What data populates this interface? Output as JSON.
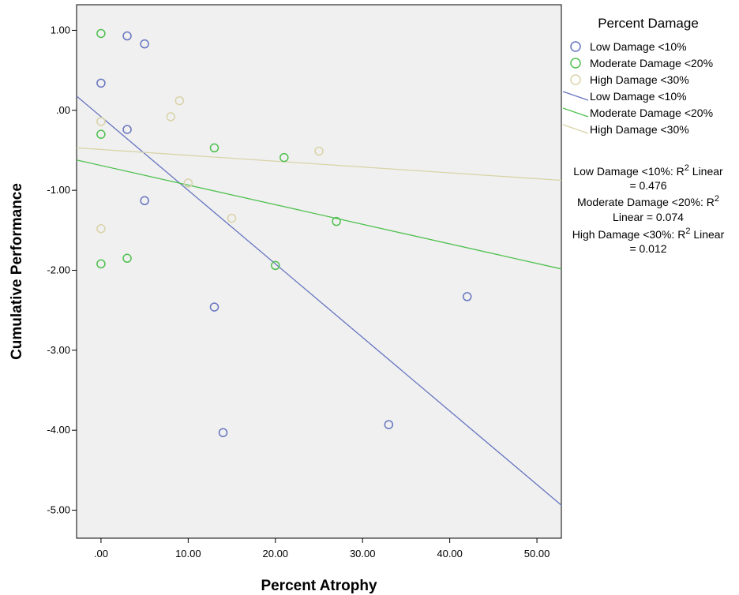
{
  "chart_data": {
    "type": "scatter",
    "xlabel": "Percent Atrophy",
    "ylabel": "Cumulative Performance",
    "xlim": [
      -2.8,
      52.8
    ],
    "ylim": [
      -5.35,
      1.32
    ],
    "x_ticks": [
      0,
      10,
      20,
      30,
      40,
      50
    ],
    "x_tick_labels": [
      ".00",
      "10.00",
      "20.00",
      "30.00",
      "40.00",
      "50.00"
    ],
    "y_ticks": [
      1,
      0,
      -1,
      -2,
      -3,
      -4,
      -5
    ],
    "y_tick_labels": [
      "1.00",
      ".00",
      "-1.00",
      "-2.00",
      "-3.00",
      "-4.00",
      "-5.00"
    ],
    "grid": false,
    "background_color": "#f0f0f0",
    "legend": {
      "title": "Percent Damage",
      "placement": "right",
      "marker_entries": [
        "Low Damage <10%",
        "Moderate Damage <20%",
        "High Damage <30%"
      ],
      "line_entries": [
        "Low Damage <10%",
        "Moderate Damage <20%",
        "High Damage <30%"
      ]
    },
    "series": [
      {
        "name": "Low Damage <10%",
        "color": "#6675c0",
        "points": [
          [
            0,
            0.34
          ],
          [
            3,
            0.93
          ],
          [
            5,
            0.83
          ],
          [
            3,
            -0.24
          ],
          [
            5,
            -1.13
          ],
          [
            13,
            -2.46
          ],
          [
            14,
            -4.03
          ],
          [
            33,
            -3.93
          ],
          [
            42,
            -2.33
          ]
        ],
        "fit": {
          "intercept": -0.08,
          "slope": -0.092
        }
      },
      {
        "name": "Moderate Damage <20%",
        "color": "#4fc04f",
        "points": [
          [
            0,
            0.96
          ],
          [
            0,
            -0.3
          ],
          [
            0,
            -1.92
          ],
          [
            3,
            -1.85
          ],
          [
            13,
            -0.47
          ],
          [
            20,
            -1.94
          ],
          [
            21,
            -0.59
          ],
          [
            27,
            -1.39
          ]
        ],
        "fit": {
          "intercept": -0.69,
          "slope": -0.0245
        }
      },
      {
        "name": "High Damage <30%",
        "color": "#d9d3a7",
        "points": [
          [
            0,
            -0.14
          ],
          [
            0,
            -1.48
          ],
          [
            8,
            -0.08
          ],
          [
            9,
            0.12
          ],
          [
            10,
            -0.91
          ],
          [
            15,
            -1.35
          ],
          [
            25,
            -0.51
          ]
        ],
        "fit": {
          "intercept": -0.49,
          "slope": -0.0073
        }
      }
    ],
    "annotations": {
      "low": {
        "line1_prefix": "Low Damage <10%: R",
        "line1_suffix": " Linear",
        "line2": "= 0.476"
      },
      "moderate": {
        "line1_prefix": "Moderate Damage <20%: R",
        "line1_suffix": "",
        "line2": "Linear = 0.074"
      },
      "high": {
        "line1_prefix": "High Damage <30%: R",
        "line1_suffix": " Linear",
        "line2": "= 0.012"
      },
      "superscript": "2"
    }
  }
}
